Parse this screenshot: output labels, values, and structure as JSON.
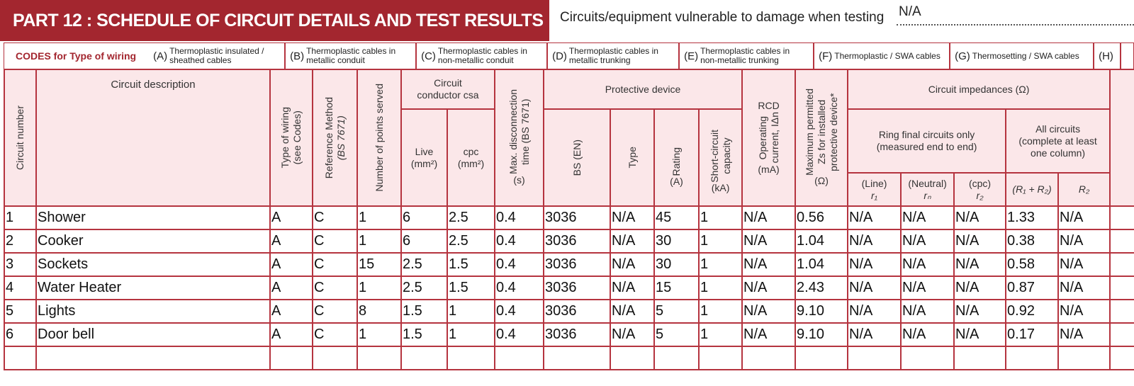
{
  "header": {
    "title": "PART 12 : SCHEDULE OF CIRCUIT DETAILS AND TEST RESULTS",
    "vulnerable_label": "Circuits/equipment vulnerable to damage when testing",
    "vulnerable_value": "N/A"
  },
  "codes": {
    "label": "CODES for Type of wiring",
    "items": [
      {
        "code": "(A)",
        "text": "Thermoplastic insulated / sheathed cables"
      },
      {
        "code": "(B)",
        "text": "Thermoplastic cables in metallic conduit"
      },
      {
        "code": "(C)",
        "text": "Thermoplastic cables in non-metallic conduit"
      },
      {
        "code": "(D)",
        "text": "Thermoplastic cables in metallic trunking"
      },
      {
        "code": "(E)",
        "text": "Thermoplastic cables in non-metallic trunking"
      },
      {
        "code": "(F)",
        "text": "Thermoplastic / SWA cables"
      },
      {
        "code": "(G)",
        "text": "Thermosetting / SWA cables"
      },
      {
        "code": "(H)"
      }
    ]
  },
  "table": {
    "headers": {
      "circuit_number": "Circuit number",
      "circuit_description": "Circuit description",
      "type_of_wiring": "Type of wiring",
      "type_of_wiring_note": "(see Codes)",
      "reference_method": "Reference Method",
      "reference_method_note": "(BS 7671)",
      "points_served": "Number of points served",
      "conductor_csa": "Circuit conductor csa",
      "live": "Live",
      "live_unit": "(mm²)",
      "cpc": "cpc",
      "cpc_unit": "(mm²)",
      "max_disconnection": "Max. disconnection",
      "max_disconnection_note": "time (BS 7671)",
      "max_disconnection_unit": "(s)",
      "protective_device": "Protective device",
      "bs_en": "BS (EN)",
      "type": "Type",
      "rating": "Rating",
      "rating_unit": "(A)",
      "short_circuit": "Short-circuit",
      "short_circuit_note": "capacity",
      "short_circuit_unit": "(kA)",
      "rcd": "RCD",
      "operating_current": "Operating",
      "operating_current_note": "current, IΔn",
      "operating_current_unit": "(mA)",
      "max_zs": "Maximum permitted",
      "max_zs_note": "Zs for installed",
      "max_zs_note2": "protective device*",
      "max_zs_unit": "(Ω)",
      "impedances": "Circuit impedances (Ω)",
      "ring_final": "Ring final circuits only",
      "ring_final_note": "(measured end to end)",
      "all_circuits": "All circuits (complete at least one column)",
      "line": "(Line)",
      "r1": "r₁",
      "neutral": "(Neutral)",
      "rn": "rₙ",
      "cpc_r": "(cpc)",
      "r2": "r₂",
      "r1_r2": "(R₁ + R₂)",
      "R2": "R₂"
    },
    "rows": [
      [
        "1",
        "Shower",
        "A",
        "C",
        "1",
        "6",
        "2.5",
        "0.4",
        "3036",
        "N/A",
        "45",
        "1",
        "N/A",
        "0.56",
        "N/A",
        "N/A",
        "N/A",
        "1.33",
        "N/A"
      ],
      [
        "2",
        "Cooker",
        "A",
        "C",
        "1",
        "6",
        "2.5",
        "0.4",
        "3036",
        "N/A",
        "30",
        "1",
        "N/A",
        "1.04",
        "N/A",
        "N/A",
        "N/A",
        "0.38",
        "N/A"
      ],
      [
        "3",
        "Sockets",
        "A",
        "C",
        "15",
        "2.5",
        "1.5",
        "0.4",
        "3036",
        "N/A",
        "30",
        "1",
        "N/A",
        "1.04",
        "N/A",
        "N/A",
        "N/A",
        "0.58",
        "N/A"
      ],
      [
        "4",
        "Water Heater",
        "A",
        "C",
        "1",
        "2.5",
        "1.5",
        "0.4",
        "3036",
        "N/A",
        "15",
        "1",
        "N/A",
        "2.43",
        "N/A",
        "N/A",
        "N/A",
        "0.87",
        "N/A"
      ],
      [
        "5",
        "Lights",
        "A",
        "C",
        "8",
        "1.5",
        "1",
        "0.4",
        "3036",
        "N/A",
        "5",
        "1",
        "N/A",
        "9.10",
        "N/A",
        "N/A",
        "N/A",
        "0.92",
        "N/A"
      ],
      [
        "6",
        "Door bell",
        "A",
        "C",
        "1",
        "1.5",
        "1",
        "0.4",
        "3036",
        "N/A",
        "5",
        "1",
        "N/A",
        "9.10",
        "N/A",
        "N/A",
        "N/A",
        "0.17",
        "N/A"
      ]
    ]
  }
}
